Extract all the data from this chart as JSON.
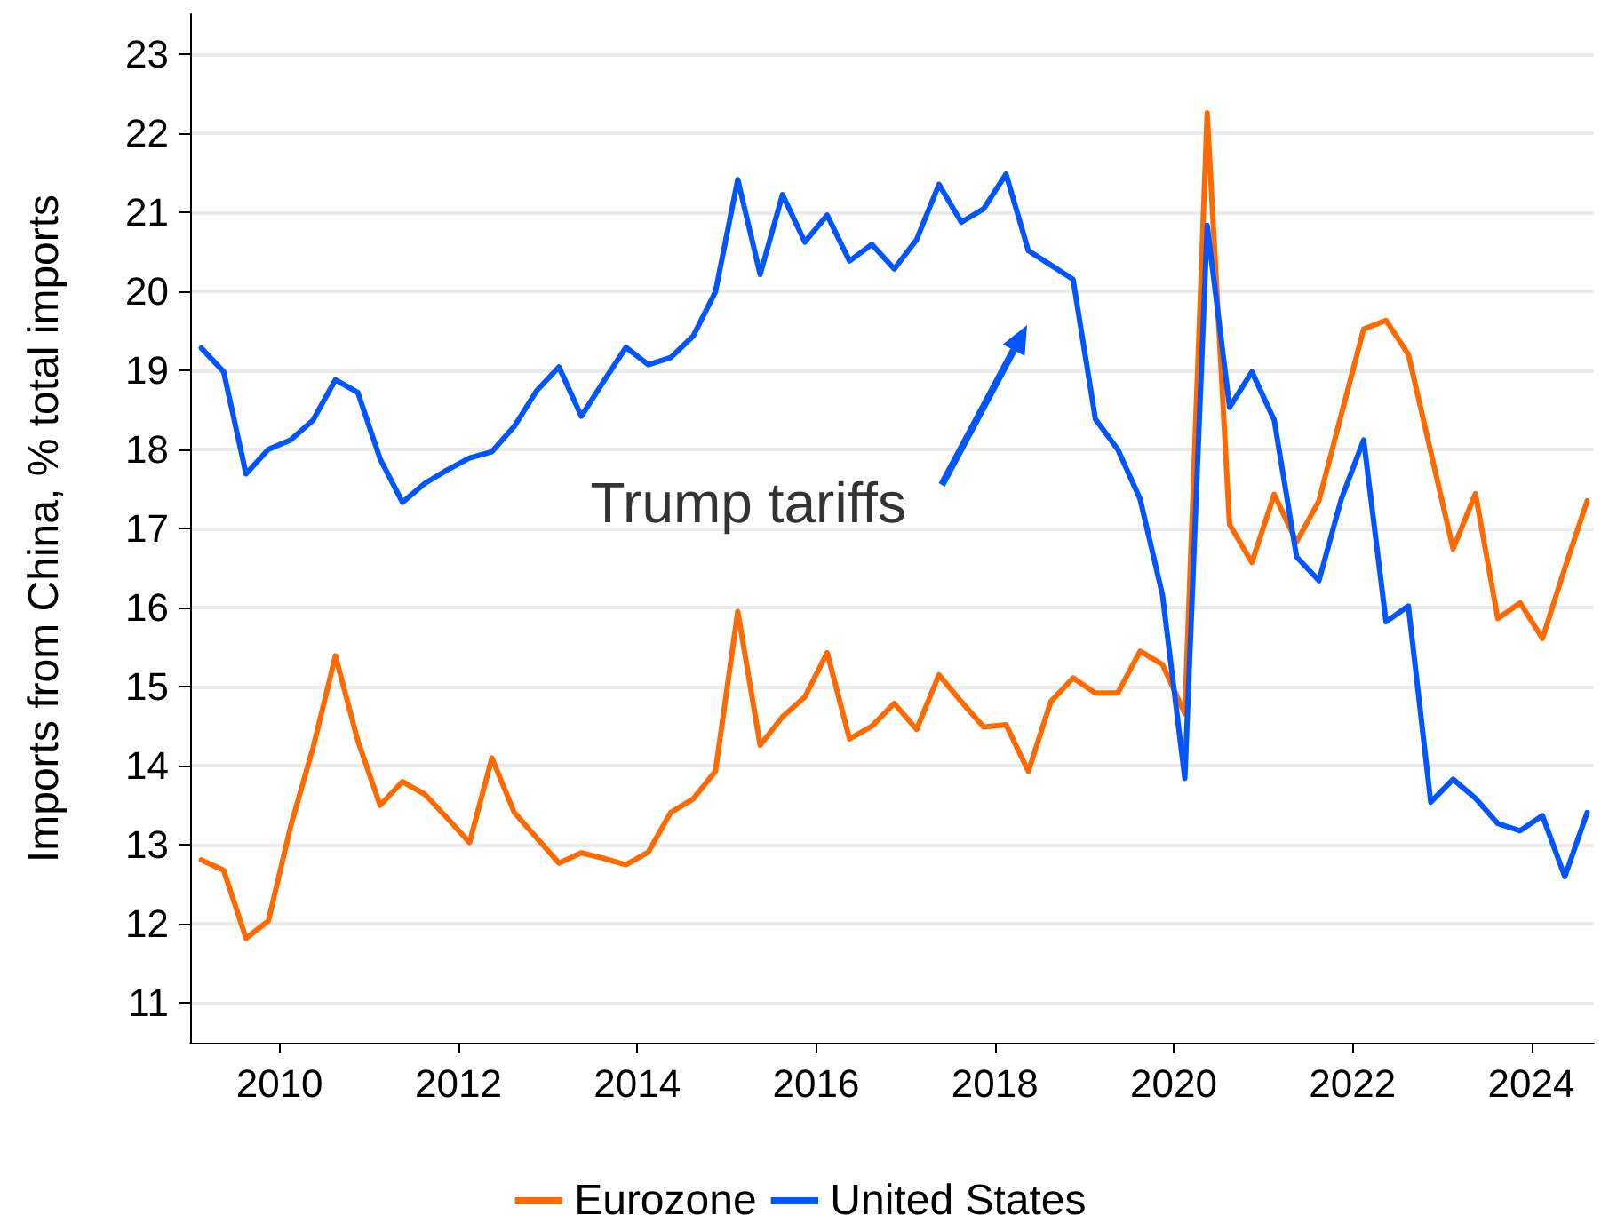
{
  "chart_data": {
    "type": "line",
    "ylabel": "Imports from China, % total imports",
    "x": [
      2009.125,
      2009.375,
      2009.625,
      2009.875,
      2010.125,
      2010.375,
      2010.625,
      2010.875,
      2011.125,
      2011.375,
      2011.625,
      2011.875,
      2012.125,
      2012.375,
      2012.625,
      2012.875,
      2013.125,
      2013.375,
      2013.625,
      2013.875,
      2014.125,
      2014.375,
      2014.625,
      2014.875,
      2015.125,
      2015.375,
      2015.625,
      2015.875,
      2016.125,
      2016.375,
      2016.625,
      2016.875,
      2017.125,
      2017.375,
      2017.625,
      2017.875,
      2018.125,
      2018.375,
      2018.625,
      2018.875,
      2019.125,
      2019.375,
      2019.625,
      2019.875,
      2020.125,
      2020.375,
      2020.625,
      2020.875,
      2021.125,
      2021.375,
      2021.625,
      2021.875,
      2022.125,
      2022.375,
      2022.625,
      2022.875,
      2023.125,
      2023.375,
      2023.625,
      2023.875,
      2024.125,
      2024.375,
      2024.625
    ],
    "series": [
      {
        "name": "Eurozone",
        "color": "#ff6a00",
        "values": [
          12.81,
          12.68,
          11.82,
          12.04,
          13.24,
          14.23,
          15.39,
          14.32,
          13.5,
          13.8,
          13.64,
          13.34,
          13.03,
          14.1,
          13.41,
          13.09,
          12.77,
          12.9,
          12.83,
          12.75,
          12.91,
          13.41,
          13.58,
          13.93,
          15.95,
          14.26,
          14.62,
          14.87,
          15.43,
          14.34,
          14.5,
          14.79,
          14.46,
          15.15,
          14.81,
          14.49,
          14.52,
          13.93,
          14.81,
          15.11,
          14.92,
          14.92,
          15.45,
          15.28,
          14.66,
          22.25,
          17.05,
          16.57,
          17.43,
          16.83,
          17.35,
          18.44,
          19.52,
          19.63,
          19.2,
          17.97,
          16.74,
          17.44,
          15.86,
          16.06,
          15.61,
          16.5,
          17.35
        ]
      },
      {
        "name": "United States",
        "color": "#0055ff",
        "values": [
          19.28,
          18.98,
          17.69,
          18.0,
          18.12,
          18.37,
          18.88,
          18.72,
          17.88,
          17.33,
          17.57,
          17.74,
          17.89,
          17.97,
          18.29,
          18.74,
          19.04,
          18.42,
          18.86,
          19.29,
          19.07,
          19.16,
          19.43,
          19.99,
          21.41,
          20.21,
          21.22,
          20.62,
          20.96,
          20.38,
          20.59,
          20.28,
          20.65,
          21.35,
          20.87,
          21.04,
          21.48,
          20.51,
          20.33,
          20.15,
          18.38,
          18.0,
          17.37,
          16.16,
          13.84,
          20.83,
          18.53,
          18.98,
          18.37,
          16.64,
          16.34,
          17.37,
          18.12,
          15.82,
          16.02,
          13.54,
          13.83,
          13.59,
          13.27,
          13.18,
          13.37,
          12.6,
          13.41
        ]
      }
    ],
    "xlim": [
      2009,
      2024.7
    ],
    "xticks": [
      2010,
      2012,
      2014,
      2016,
      2018,
      2020,
      2022,
      2024
    ],
    "ylim": [
      10.5,
      23.5
    ],
    "yticks": [
      11,
      12,
      13,
      14,
      15,
      16,
      17,
      18,
      19,
      20,
      21,
      22,
      23
    ],
    "annotations": [
      "Trump tariffs"
    ],
    "grid": "y",
    "legend": "bottom",
    "marker": "none",
    "line_style": "solid"
  }
}
